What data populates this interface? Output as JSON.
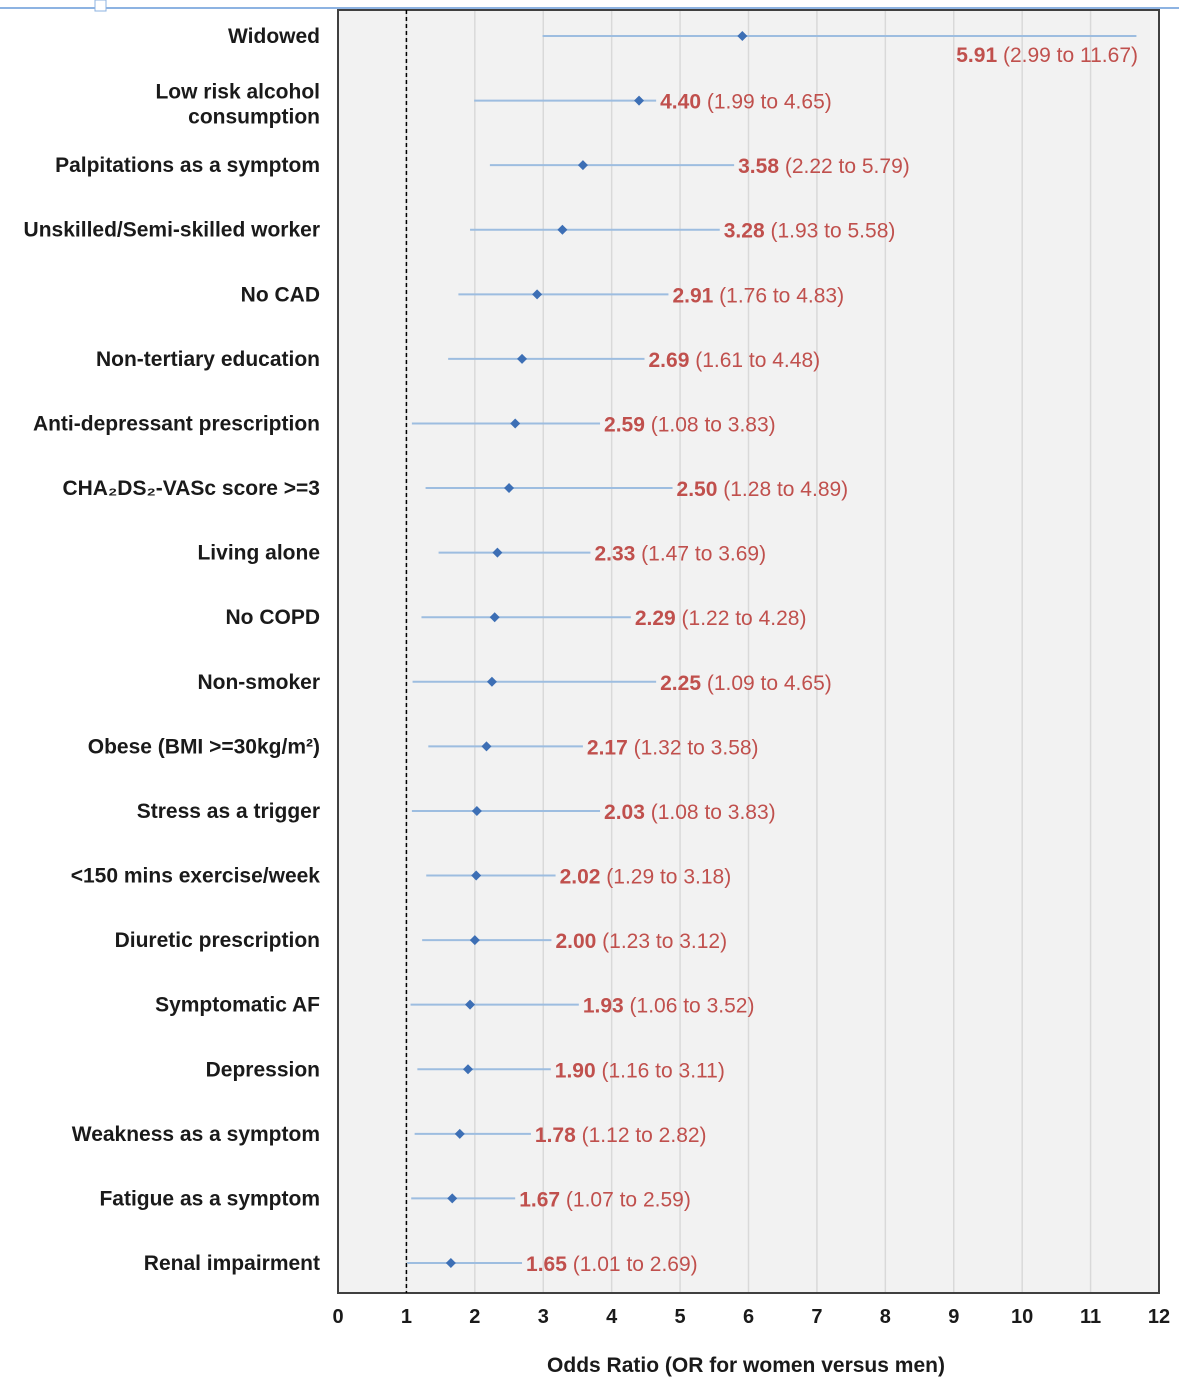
{
  "chart_data": {
    "type": "forest",
    "xlabel": "Odds Ratio (OR for women versus men)",
    "xlim": [
      0,
      12
    ],
    "xticks": [
      "0",
      "1",
      "2",
      "3",
      "4",
      "5",
      "6",
      "7",
      "8",
      "9",
      "10",
      "11",
      "12"
    ],
    "reference_line": 1,
    "grid": "vertical",
    "colors": {
      "ci_line": "#9dbde0",
      "point": "#3d6fb5",
      "annotation": "#c0504d",
      "plot_bg": "#f2f2f2"
    },
    "rows": [
      {
        "label": "Widowed",
        "or": 5.91,
        "lo": 2.99,
        "hi": 11.67,
        "est": "5.91",
        "ci": "(2.99 to 11.67)"
      },
      {
        "label": "Low risk alcohol consumption",
        "label_lines": [
          "Low risk alcohol",
          "consumption"
        ],
        "or": 4.4,
        "lo": 1.99,
        "hi": 4.65,
        "est": "4.40",
        "ci": "(1.99 to 4.65)"
      },
      {
        "label": "Palpitations as a symptom",
        "or": 3.58,
        "lo": 2.22,
        "hi": 5.79,
        "est": "3.58",
        "ci": "(2.22 to 5.79)"
      },
      {
        "label": "Unskilled/Semi-skilled worker",
        "or": 3.28,
        "lo": 1.93,
        "hi": 5.58,
        "est": "3.28",
        "ci": "(1.93 to 5.58)"
      },
      {
        "label": "No CAD",
        "or": 2.91,
        "lo": 1.76,
        "hi": 4.83,
        "est": "2.91",
        "ci": "(1.76 to 4.83)"
      },
      {
        "label": "Non-tertiary education",
        "or": 2.69,
        "lo": 1.61,
        "hi": 4.48,
        "est": "2.69",
        "ci": "(1.61 to 4.48)"
      },
      {
        "label": "Anti-depressant prescription",
        "or": 2.59,
        "lo": 1.08,
        "hi": 3.83,
        "est": "2.59",
        "ci": "(1.08 to 3.83)"
      },
      {
        "label": "CHA₂DS₂-VASc score >=3",
        "or": 2.5,
        "lo": 1.28,
        "hi": 4.89,
        "est": "2.50",
        "ci": "(1.28 to 4.89)"
      },
      {
        "label": "Living alone",
        "or": 2.33,
        "lo": 1.47,
        "hi": 3.69,
        "est": "2.33",
        "ci": "(1.47 to 3.69)"
      },
      {
        "label": "No COPD",
        "or": 2.29,
        "lo": 1.22,
        "hi": 4.28,
        "est": "2.29",
        "ci": "(1.22 to 4.28)"
      },
      {
        "label": "Non-smoker",
        "or": 2.25,
        "lo": 1.09,
        "hi": 4.65,
        "est": "2.25",
        "ci": "(1.09 to 4.65)"
      },
      {
        "label": "Obese (BMI >=30kg/m²)",
        "or": 2.17,
        "lo": 1.32,
        "hi": 3.58,
        "est": "2.17",
        "ci": "(1.32 to 3.58)"
      },
      {
        "label": "Stress as a trigger",
        "or": 2.03,
        "lo": 1.08,
        "hi": 3.83,
        "est": "2.03",
        "ci": "(1.08 to 3.83)"
      },
      {
        "label": "<150 mins exercise/week",
        "or": 2.02,
        "lo": 1.29,
        "hi": 3.18,
        "est": "2.02",
        "ci": "(1.29 to 3.18)"
      },
      {
        "label": "Diuretic prescription",
        "or": 2.0,
        "lo": 1.23,
        "hi": 3.12,
        "est": "2.00",
        "ci": "(1.23 to 3.12)"
      },
      {
        "label": "Symptomatic AF",
        "or": 1.93,
        "lo": 1.06,
        "hi": 3.52,
        "est": "1.93",
        "ci": "(1.06 to 3.52)"
      },
      {
        "label": "Depression",
        "or": 1.9,
        "lo": 1.16,
        "hi": 3.11,
        "est": "1.90",
        "ci": "(1.16 to 3.11)"
      },
      {
        "label": "Weakness as a symptom",
        "or": 1.78,
        "lo": 1.12,
        "hi": 2.82,
        "est": "1.78",
        "ci": "(1.12 to 2.82)"
      },
      {
        "label": "Fatigue as a symptom",
        "or": 1.67,
        "lo": 1.07,
        "hi": 2.59,
        "est": "1.67",
        "ci": "(1.07 to 2.59)"
      },
      {
        "label": "Renal impairment",
        "or": 1.65,
        "lo": 1.01,
        "hi": 2.69,
        "est": "1.65",
        "ci": "(1.01 to 2.69)"
      }
    ]
  }
}
